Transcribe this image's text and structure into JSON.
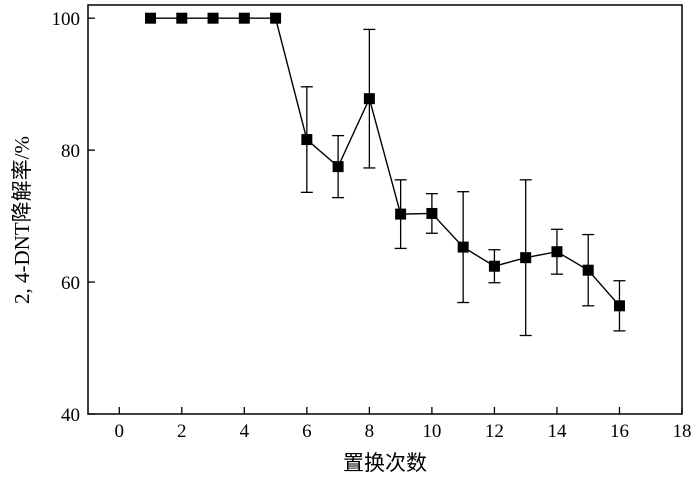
{
  "chart_data": {
    "type": "line",
    "title": "",
    "xlabel": "置换次数",
    "ylabel": "2, 4-DNT降解率/%",
    "xlim": [
      -1,
      18
    ],
    "ylim": [
      40,
      102
    ],
    "x_ticks": [
      0,
      2,
      4,
      6,
      8,
      10,
      12,
      14,
      16,
      18
    ],
    "y_ticks": [
      40,
      60,
      80,
      100
    ],
    "x_tick_labels": [
      "0",
      "2",
      "4",
      "6",
      "8",
      "10",
      "12",
      "14",
      "16",
      "18"
    ],
    "y_tick_labels": [
      "40",
      "60",
      "80",
      "100"
    ],
    "grid": false,
    "legend": "none",
    "series": [
      {
        "marker": "square",
        "color": "#000000",
        "x": [
          1,
          2,
          3,
          4,
          5,
          6,
          7,
          8,
          9,
          10,
          11,
          12,
          13,
          14,
          15,
          16
        ],
        "y": [
          100,
          100,
          100,
          100,
          100,
          81.6,
          77.5,
          87.8,
          70.3,
          70.4,
          65.3,
          62.4,
          63.7,
          64.6,
          61.8,
          56.4
        ],
        "error": [
          0,
          0,
          0,
          0,
          0,
          8,
          4.7,
          10.5,
          5.2,
          3,
          8.4,
          2.5,
          11.8,
          3.4,
          5.4,
          3.8
        ]
      }
    ]
  }
}
